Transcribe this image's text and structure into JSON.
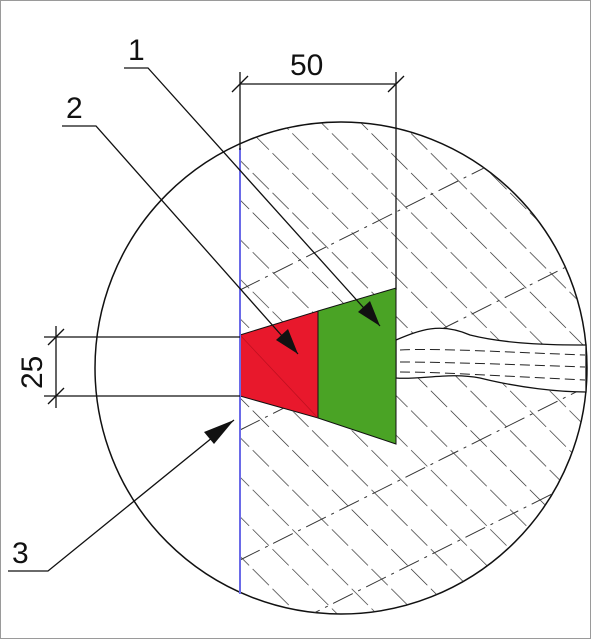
{
  "labels": {
    "callout_1": "1",
    "callout_2": "2",
    "callout_3": "3",
    "dim_width": "50",
    "dim_height": "25"
  },
  "colors": {
    "zone_2_fill": "#e8182c",
    "zone_1_fill": "#4aa325",
    "boundary_line": "#6a6ae8",
    "hatch": "#222222",
    "frame": "#9a9a9a"
  }
}
